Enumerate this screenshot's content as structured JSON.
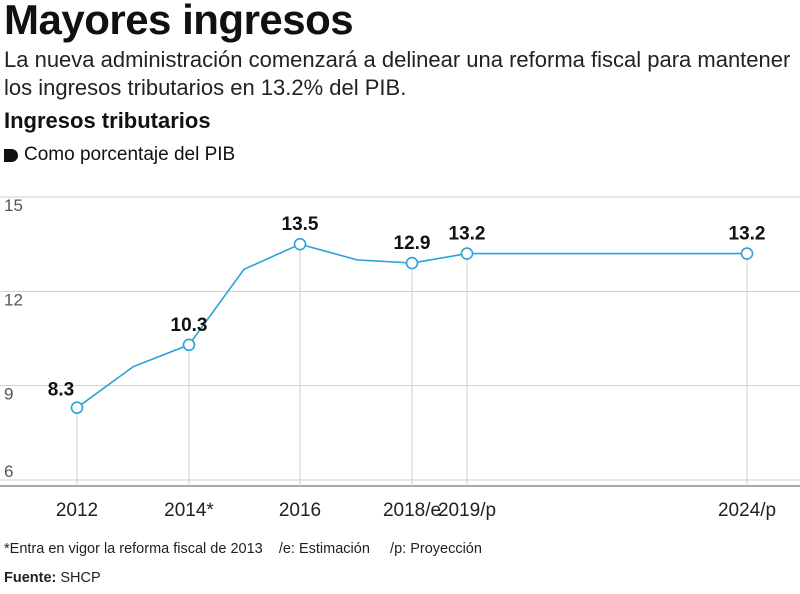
{
  "header": {
    "title": "Mayores ingresos",
    "subtitle": "La nueva administración comenzará a delinear una reforma fiscal para mantener los ingresos tributarios en 13.2% del PIB."
  },
  "chart_header": {
    "title": "Ingresos tributarios",
    "subtitle": "Como porcentaje del PIB",
    "subtitle_icon": "bullet-marker-icon"
  },
  "footer": {
    "footnote": "*Entra en vigor la reforma fiscal de 2013    /e: Estimación     /p: Proyección",
    "source_label": "Fuente:",
    "source_value": "SHCP"
  },
  "colors": {
    "line": "#2aa2d8",
    "grid": "#cfcfcf",
    "axis": "#555555",
    "text": "#111111"
  },
  "chart_data": {
    "type": "line",
    "title": "Ingresos tributarios",
    "subtitle": "Como porcentaje del PIB",
    "xlabel": "",
    "ylabel": "",
    "ylim": [
      6,
      15
    ],
    "yticks": [
      6,
      9,
      12,
      15
    ],
    "grid": "horizontal",
    "legend": "none",
    "series": [
      {
        "name": "",
        "points": [
          {
            "x": 2012,
            "y": 8.3,
            "marker": true,
            "label": "8.3",
            "tick": "2012"
          },
          {
            "x": 2013,
            "y": 9.6,
            "marker": false
          },
          {
            "x": 2014,
            "y": 10.3,
            "marker": true,
            "label": "10.3",
            "tick": "2014*"
          },
          {
            "x": 2015,
            "y": 12.7,
            "marker": false
          },
          {
            "x": 2016,
            "y": 13.5,
            "marker": true,
            "label": "13.5",
            "tick": "2016"
          },
          {
            "x": 2017,
            "y": 13.0,
            "marker": false
          },
          {
            "x": 2018,
            "y": 12.9,
            "marker": true,
            "label": "12.9",
            "tick": "2018/e"
          },
          {
            "x": 2019,
            "y": 13.2,
            "marker": true,
            "label": "13.2",
            "tick": "2019/p"
          },
          {
            "x": 2024,
            "y": 13.2,
            "marker": true,
            "label": "13.2",
            "tick": "2024/p"
          }
        ]
      }
    ]
  }
}
